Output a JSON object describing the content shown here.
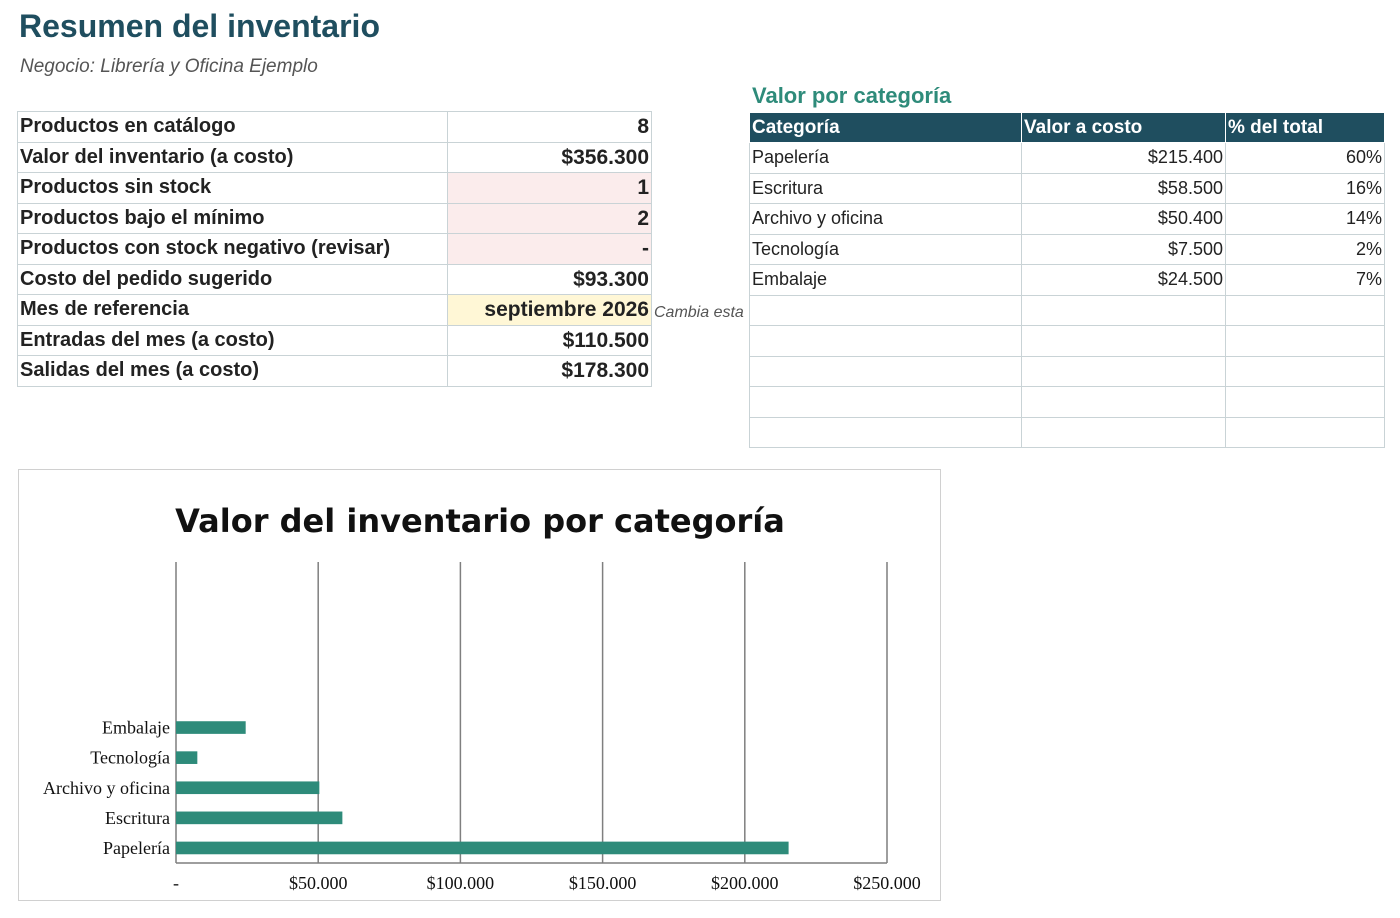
{
  "title": "Resumen del inventario",
  "subtitle": "Negocio: Librería y Oficina Ejemplo",
  "summary": [
    {
      "label": "Productos en catálogo",
      "value": "8",
      "style": ""
    },
    {
      "label": "Valor del inventario (a costo)",
      "value": "$356.300",
      "style": ""
    },
    {
      "label": "Productos sin stock",
      "value": "1",
      "style": "warn"
    },
    {
      "label": "Productos bajo el mínimo",
      "value": "2",
      "style": "warn"
    },
    {
      "label": "Productos con stock negativo (revisar)",
      "value": "-",
      "style": "warn"
    },
    {
      "label": "Costo del pedido sugerido",
      "value": "$93.300",
      "style": ""
    },
    {
      "label": "Mes de referencia",
      "value": "septiembre 2026",
      "style": "input"
    },
    {
      "label": "Entradas del mes (a costo)",
      "value": "$110.500",
      "style": ""
    },
    {
      "label": "Salidas del mes (a costo)",
      "value": "$178.300",
      "style": ""
    }
  ],
  "note": "Cambia esta",
  "category_table": {
    "title": "Valor por categoría",
    "headers": [
      "Categoría",
      "Valor a costo",
      "% del total"
    ],
    "rows": [
      [
        "Papelería",
        "$215.400",
        "60%"
      ],
      [
        "Escritura",
        "$58.500",
        "16%"
      ],
      [
        "Archivo y oficina",
        "$50.400",
        "14%"
      ],
      [
        "Tecnología",
        "$7.500",
        "2%"
      ],
      [
        "Embalaje",
        "$24.500",
        "7%"
      ],
      [
        "",
        "",
        ""
      ],
      [
        "",
        "",
        ""
      ],
      [
        "",
        "",
        ""
      ],
      [
        "",
        "",
        ""
      ],
      [
        "",
        "",
        ""
      ]
    ]
  },
  "chart_data": {
    "type": "bar",
    "orientation": "horizontal",
    "title": "Valor del inventario por categoría",
    "categories": [
      "Papelería",
      "Escritura",
      "Archivo y oficina",
      "Tecnología",
      "Embalaje"
    ],
    "values": [
      215400,
      58500,
      50400,
      7500,
      24500
    ],
    "xlim": [
      0,
      250000
    ],
    "xticks": [
      0,
      50000,
      100000,
      150000,
      200000,
      250000
    ],
    "xtick_labels": [
      "-",
      "$50.000",
      "$100.000",
      "$150.000",
      "$200.000",
      "$250.000"
    ],
    "empty_slots_above": 5,
    "grid": true,
    "bar_color": "#2e8b7a"
  },
  "colors": {
    "title": "#1f4e5f",
    "accent": "#2e8b7a",
    "header_bg": "#1f4e5f",
    "warn_bg": "#fbecec",
    "input_bg": "#fff7d6"
  }
}
